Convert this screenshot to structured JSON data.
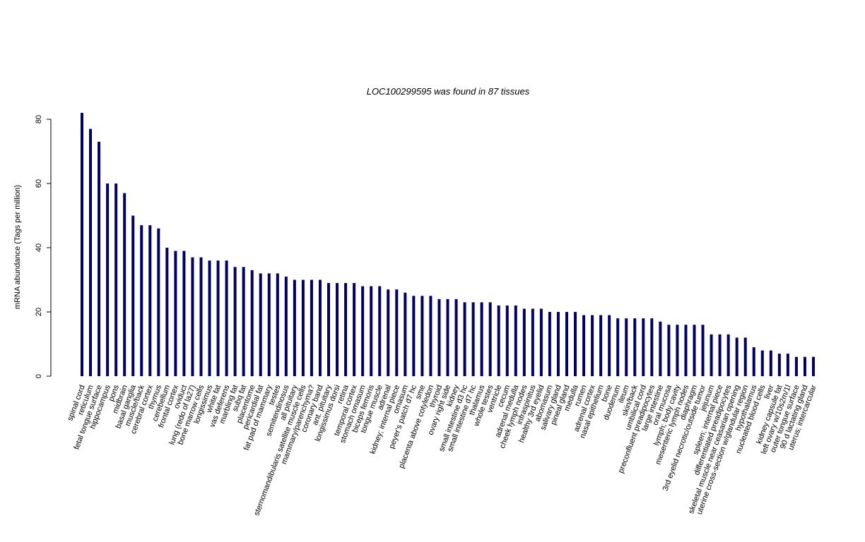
{
  "chart_data": {
    "type": "bar",
    "title": "LOC100299595  was found in  87  tissues",
    "y_label": "mRNA abundance (Tags per million)",
    "color": "#000066",
    "ylim": [
      0,
      82
    ],
    "yticks": [
      0,
      20,
      40,
      60,
      80
    ],
    "categories": [
      "spinal cord",
      "reticulum",
      "fetal tongue surface",
      "hippocampus",
      "pons",
      "midbrain",
      "basal ganglia",
      "muscle/back",
      "cerebral cortex",
      "thymus",
      "cerebellum",
      "frontal cortex",
      "oviduct",
      "lung (redo of la27)",
      "bone marrow cells",
      "longissimus",
      "white fat",
      "vas deferens",
      "marbling fat",
      "subq fat",
      "placentome",
      "pericardial fat",
      "fat pad of mammary",
      "testes",
      "semitendinosus",
      "all pituitary",
      "sternomandibularis satellite muscle cells",
      "mammary/parenchyma?",
      "coronary band",
      "ant. pituitary",
      "longissimus dorsi",
      "retina",
      "temporal cortex",
      "stomach omasum",
      "biceps femoris",
      "tongue muscle",
      "adrenal",
      "kidney; internal piece",
      "omasum",
      "peyer's patch d7 hc",
      "sme",
      "placenta above cotyledon",
      "thyroid",
      "ovary right side",
      "kidney",
      "small intestine d3 hc",
      "small intestine d7 hc",
      "thalamus",
      "whole testes",
      "ventricle",
      "cecum",
      "adrenal medulla",
      "cheek lymph nodes",
      "infraspinitus",
      "healthy 3rd eyelid",
      "abomasum",
      "salivary gland",
      "pineal gland",
      "medulla",
      "rumen",
      "adrenal cortex",
      "nasal epithelium",
      "bone",
      "duodenum",
      "ileum",
      "skin/back",
      "umbilical cord",
      "preconfluent preadipocytes",
      "large intestine",
      "oral mucosa",
      "lymph; body cavity",
      "mesenteric lymph nodes",
      "diaphragm",
      "3rd eyelid necrotic/outside tumor",
      "jejunum",
      "spleen; internal piece",
      "differentiated preadipocytes",
      "skeletal muscle near ceasarian opening",
      "uterine cross-section w/glandular region",
      "hypothalamus",
      "nucleated blood cells",
      "liver",
      "kidney capsule fat",
      "left ovary w/10s2m/1l",
      "outer tongue surface",
      "90 d lactating gland",
      "uterus; intercarcular"
    ],
    "values": [
      82,
      77,
      73,
      60,
      60,
      57,
      50,
      47,
      47,
      46,
      40,
      39,
      39,
      37,
      37,
      36,
      36,
      36,
      34,
      34,
      33,
      32,
      32,
      32,
      31,
      30,
      30,
      30,
      30,
      29,
      29,
      29,
      29,
      28,
      28,
      28,
      27,
      27,
      26,
      25,
      25,
      25,
      24,
      24,
      24,
      23,
      23,
      23,
      23,
      22,
      22,
      22,
      21,
      21,
      21,
      20,
      20,
      20,
      20,
      19,
      19,
      19,
      19,
      18,
      18,
      18,
      18,
      18,
      17,
      16,
      16,
      16,
      16,
      16,
      13,
      13,
      13,
      12,
      12,
      9,
      8,
      8,
      7,
      7,
      6,
      6,
      6
    ]
  }
}
